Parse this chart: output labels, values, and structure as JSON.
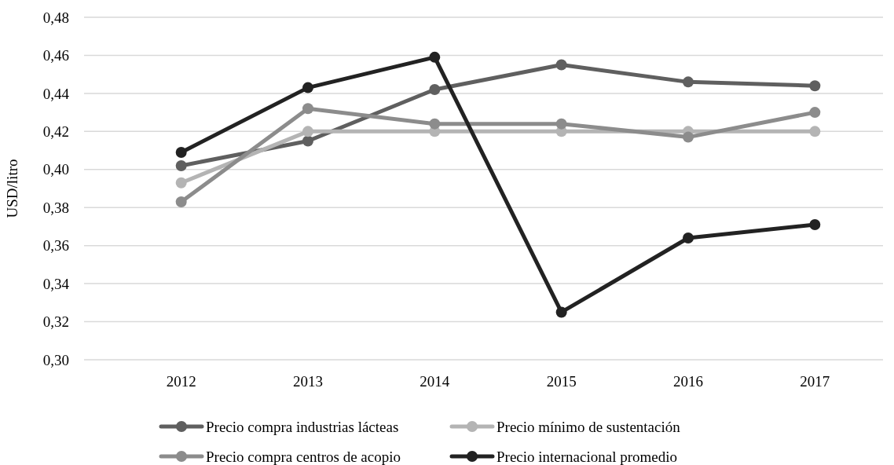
{
  "chart_data": {
    "type": "line",
    "ylabel": "USD/litro",
    "categories": [
      "2012",
      "2013",
      "2014",
      "2015",
      "2016",
      "2017"
    ],
    "series": [
      {
        "name": "Precio compra industrias lácteas",
        "color": "#5f5f5f",
        "values": [
          0.402,
          0.415,
          0.442,
          0.455,
          0.446,
          0.444
        ]
      },
      {
        "name": "Precio mínimo de sustentación",
        "color": "#b4b4b4",
        "values": [
          0.393,
          0.42,
          0.42,
          0.42,
          0.42,
          0.42
        ]
      },
      {
        "name": "Precio compra centros de acopio",
        "color": "#8c8c8c",
        "values": [
          0.383,
          0.432,
          0.424,
          0.424,
          0.417,
          0.43
        ]
      },
      {
        "name": "Precio internacional promedio",
        "color": "#222222",
        "values": [
          0.409,
          0.443,
          0.459,
          0.325,
          0.364,
          0.371
        ]
      }
    ],
    "ylim": [
      0.3,
      0.48
    ],
    "yticks": [
      {
        "value": 0.3,
        "label": "0,30"
      },
      {
        "value": 0.32,
        "label": "0,32"
      },
      {
        "value": 0.34,
        "label": "0,34"
      },
      {
        "value": 0.36,
        "label": "0,36"
      },
      {
        "value": 0.38,
        "label": "0,38"
      },
      {
        "value": 0.4,
        "label": "0,40"
      },
      {
        "value": 0.42,
        "label": "0,42"
      },
      {
        "value": 0.44,
        "label": "0,44"
      },
      {
        "value": 0.46,
        "label": "0,46"
      },
      {
        "value": 0.48,
        "label": "0,48"
      }
    ],
    "grid": "y",
    "legend": "bottom",
    "marker": "circle",
    "line_style": "solid"
  }
}
